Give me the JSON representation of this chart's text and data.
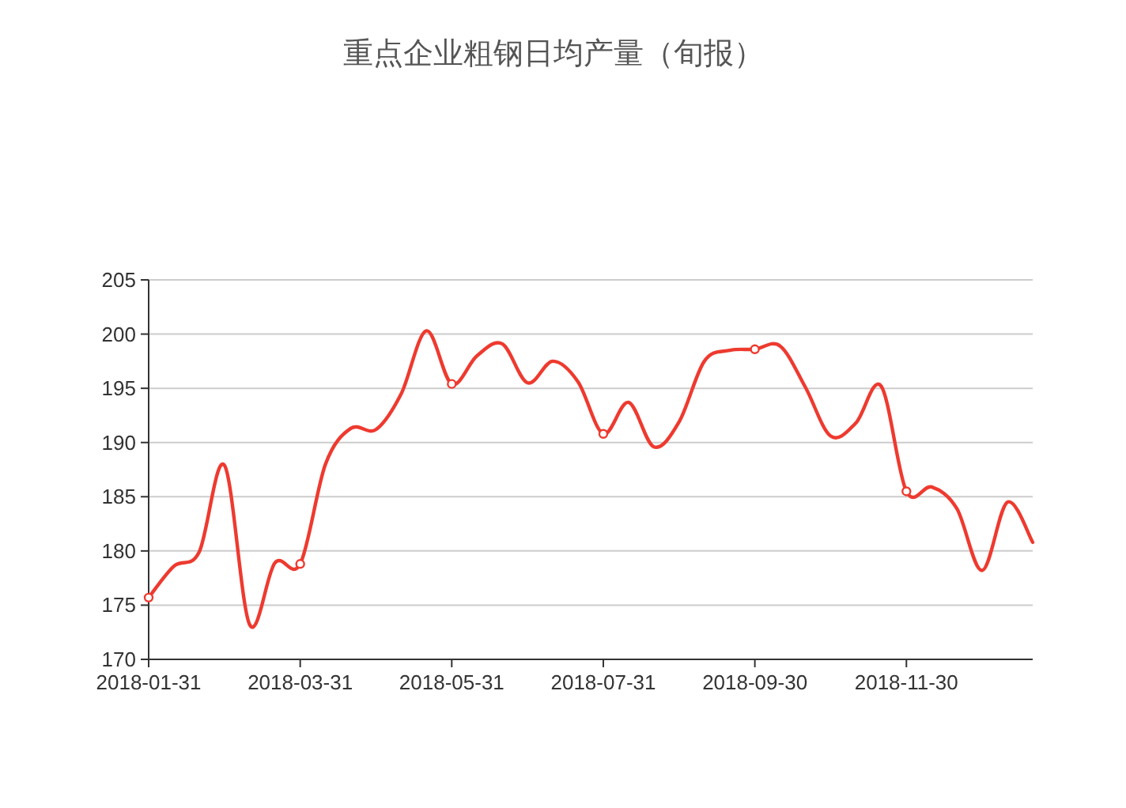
{
  "chart_data": {
    "type": "line",
    "title": "重点企业粗钢日均产量（旬报）",
    "categories": [
      "2018-01-31",
      null,
      null,
      null,
      null,
      null,
      "2018-03-31",
      null,
      null,
      null,
      null,
      null,
      "2018-05-31",
      null,
      null,
      null,
      null,
      null,
      "2018-07-31",
      null,
      null,
      null,
      null,
      null,
      "2018-09-30",
      null,
      null,
      null,
      null,
      null,
      "2018-11-30",
      null,
      null,
      null,
      null,
      null
    ],
    "series": [
      {
        "color": "#ee3a2f",
        "values": [
          175.7,
          178.6,
          179.9,
          187.9,
          173.2,
          178.9,
          178.8,
          188.0,
          191.3,
          191.2,
          194.5,
          200.3,
          195.4,
          198.0,
          199.1,
          195.5,
          197.5,
          195.6,
          190.8,
          193.7,
          189.6,
          191.9,
          197.5,
          198.5,
          198.6,
          198.9,
          195.1,
          190.6,
          191.8,
          195.2,
          185.5,
          185.9,
          183.9,
          178.2,
          184.5,
          180.8
        ]
      }
    ],
    "ylim": [
      170,
      205
    ],
    "yticks": [
      170,
      175,
      180,
      185,
      190,
      195,
      200,
      205
    ],
    "grid": "y",
    "line_style": "solid"
  }
}
